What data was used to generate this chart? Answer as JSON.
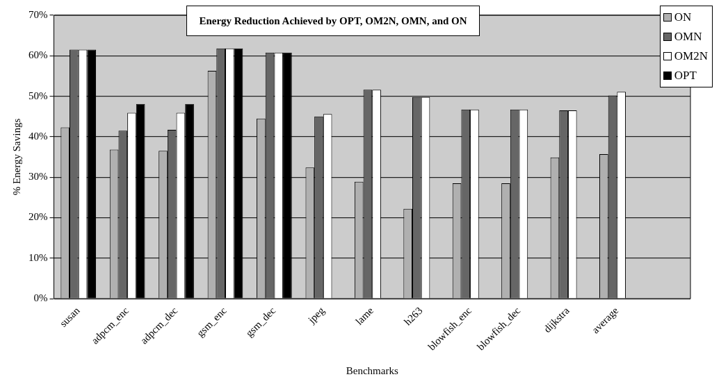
{
  "chart_data": {
    "type": "bar",
    "title": "Energy Reduction Achieved by OPT, OM2N, OMN, and ON",
    "xlabel": "Benchmarks",
    "ylabel": "% Energy Savings",
    "categories": [
      "susan",
      "adpcm_enc",
      "adpcm_dec",
      "gsm_enc",
      "gsm_dec",
      "jpeg",
      "lame",
      "h263",
      "blowfish_enc",
      "blowfish_dec",
      "dijkstra",
      "average",
      null
    ],
    "series": [
      {
        "name": "ON",
        "color": "#b0b0b0",
        "values": [
          42.3,
          36.8,
          36.5,
          56.3,
          44.5,
          32.4,
          28.9,
          22.2,
          28.5,
          28.5,
          34.9,
          35.7,
          null
        ]
      },
      {
        "name": "OMN",
        "color": "#666666",
        "values": [
          61.5,
          41.5,
          41.7,
          61.8,
          60.8,
          45.0,
          51.6,
          49.8,
          46.7,
          46.7,
          46.5,
          50.2,
          null
        ]
      },
      {
        "name": "OM2N",
        "color": "#ffffff",
        "values": [
          61.5,
          45.9,
          45.9,
          61.8,
          60.8,
          45.6,
          51.6,
          49.8,
          46.7,
          46.7,
          46.5,
          51.1,
          null
        ]
      },
      {
        "name": "OPT",
        "color": "#000000",
        "values": [
          61.5,
          48.1,
          48.1,
          61.8,
          60.8,
          null,
          null,
          null,
          null,
          null,
          null,
          null,
          null
        ]
      }
    ],
    "ylim": [
      0,
      70
    ],
    "yticks": [
      {
        "value": 0,
        "label": "0%"
      },
      {
        "value": 10,
        "label": "10%"
      },
      {
        "value": 20,
        "label": "20%"
      },
      {
        "value": 30,
        "label": "30%"
      },
      {
        "value": 40,
        "label": "40%"
      },
      {
        "value": 50,
        "label": "50%"
      },
      {
        "value": 60,
        "label": "60%"
      },
      {
        "value": 70,
        "label": "70%"
      }
    ],
    "grid": "y",
    "legend": "top right"
  }
}
